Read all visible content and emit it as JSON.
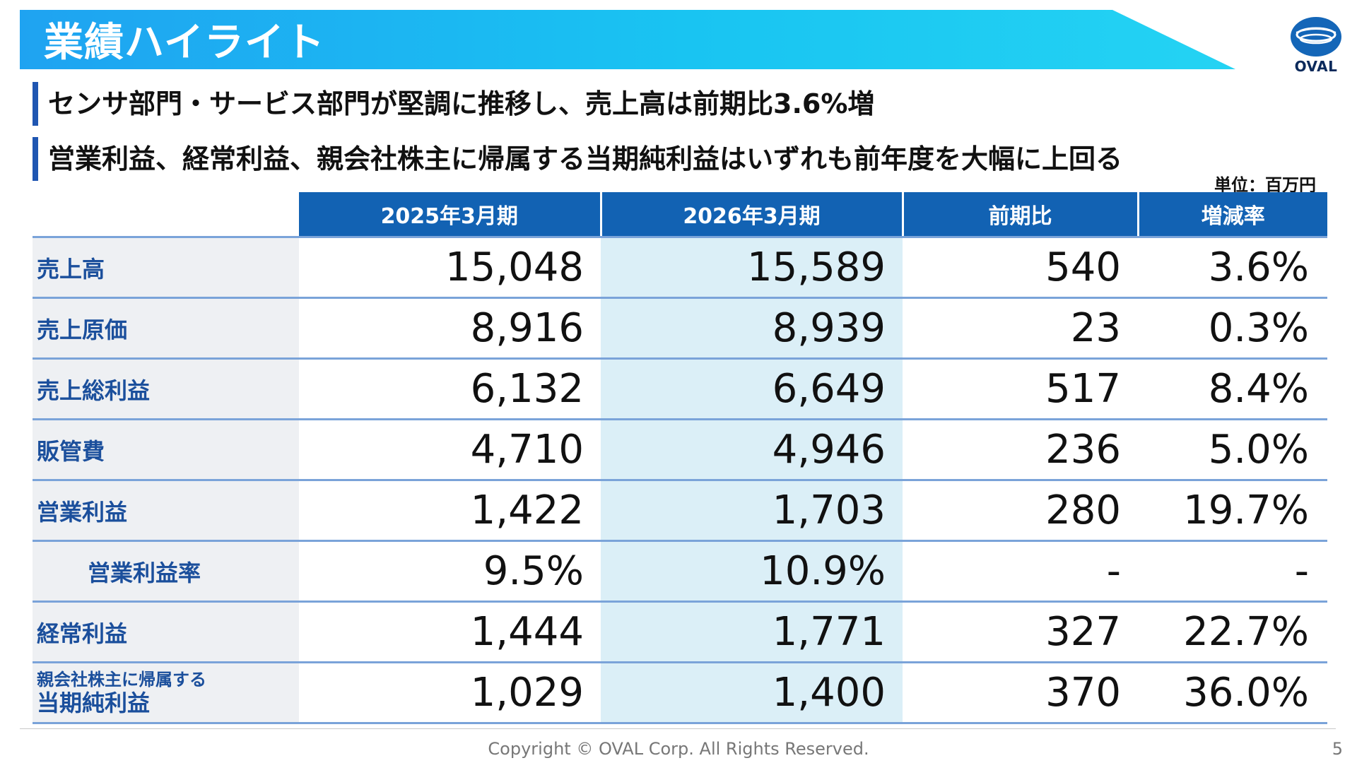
{
  "slide": {
    "title": "業績ハイライト",
    "bullets": [
      "センサ部門・サービス部門が堅調に推移し、売上高は前期比3.6%増",
      "営業利益、経常利益、親会社株主に帰属する当期純利益はいずれも前年度を大幅に上回る"
    ],
    "unit": "単位：百万円",
    "logo_text": "OVAL",
    "colors": {
      "title_bar": "#19c4f2",
      "header": "#1262b3",
      "label_text": "#1b4f9c",
      "highlight_column": "#dbeff7"
    }
  },
  "table": {
    "headers": [
      "2025年3月期",
      "2026年3月期",
      "前期比",
      "増減率"
    ],
    "rows": [
      {
        "label": "売上高",
        "prev": "15,048",
        "curr": "15,589",
        "diff": "540",
        "rate": "3.6%"
      },
      {
        "label": "売上原価",
        "prev": "8,916",
        "curr": "8,939",
        "diff": "23",
        "rate": "0.3%"
      },
      {
        "label": "売上総利益",
        "prev": "6,132",
        "curr": "6,649",
        "diff": "517",
        "rate": "8.4%"
      },
      {
        "label": "販管費",
        "prev": "4,710",
        "curr": "4,946",
        "diff": "236",
        "rate": "5.0%"
      },
      {
        "label": "営業利益",
        "prev": "1,422",
        "curr": "1,703",
        "diff": "280",
        "rate": "19.7%"
      },
      {
        "label": "営業利益率",
        "prev": "9.5%",
        "curr": "10.9%",
        "diff": "-",
        "rate": "-"
      },
      {
        "label": "経常利益",
        "prev": "1,444",
        "curr": "1,771",
        "diff": "327",
        "rate": "22.7%"
      },
      {
        "label_small": "親会社株主に帰属する",
        "label": "当期純利益",
        "prev": "1,029",
        "curr": "1,400",
        "diff": "370",
        "rate": "36.0%"
      }
    ]
  },
  "footer": {
    "copyright": "Copyright © OVAL Corp. All Rights Reserved.",
    "page": "5"
  }
}
